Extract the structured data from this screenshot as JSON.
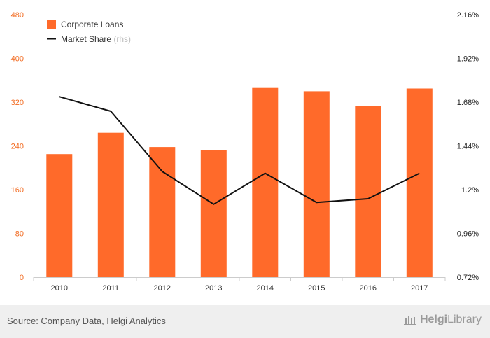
{
  "chart_data": {
    "type": "bar",
    "categories": [
      "2010",
      "2011",
      "2012",
      "2013",
      "2014",
      "2015",
      "2016",
      "2017"
    ],
    "series": [
      {
        "name": "Corporate Loans",
        "type": "bar",
        "axis": "left",
        "color": "#ff6a2a",
        "values": [
          225,
          264,
          238,
          232,
          346,
          340,
          313,
          345
        ]
      },
      {
        "name": "Market Share",
        "name_suffix": "(rhs)",
        "type": "line",
        "axis": "right",
        "color": "#111111",
        "values": [
          1.71,
          1.63,
          1.3,
          1.12,
          1.29,
          1.13,
          1.15,
          1.29
        ]
      }
    ],
    "y_left": {
      "ylim": [
        0,
        480
      ],
      "ticks": [
        0,
        80,
        160,
        240,
        320,
        400,
        480
      ],
      "tick_labels": [
        "0",
        "80",
        "160",
        "240",
        "320",
        "400",
        "480"
      ]
    },
    "y_right": {
      "ylim": [
        0.72,
        2.16
      ],
      "ticks": [
        0.72,
        0.96,
        1.2,
        1.44,
        1.68,
        1.92,
        2.16
      ],
      "tick_labels": [
        "0.72%",
        "0.96%",
        "1.2%",
        "1.44%",
        "1.68%",
        "1.92%",
        "2.16%"
      ]
    },
    "grid": false,
    "legend": "top-left",
    "xlabel": "",
    "ylabel": ""
  },
  "footer": {
    "source": "Source: Company Data, Helgi Analytics",
    "logo_part1": "Helgi",
    "logo_part2": "Library",
    "logo_icon": "library-building-icon"
  }
}
